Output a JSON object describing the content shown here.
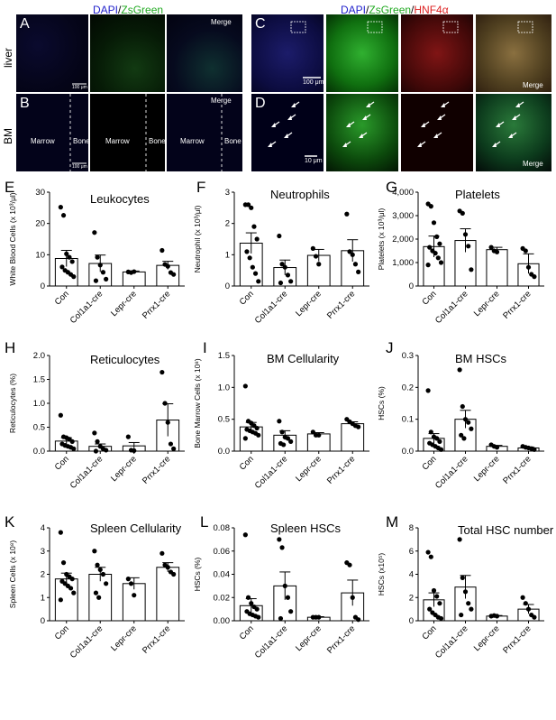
{
  "colors": {
    "dapi": "#2222cc",
    "zsgreen": "#22aa22",
    "hnf4a": "#dd2222",
    "bar_fill": "#ffffff",
    "point": "#000000"
  },
  "micro": {
    "header_left": {
      "dapi": "DAPI",
      "sep": "/",
      "zsgreen": "ZsGreen"
    },
    "header_right": {
      "dapi": "DAPI",
      "sep1": "/",
      "zsgreen": "ZsGreen",
      "sep2": "/",
      "hnf4a": "HNF4α"
    },
    "row_labels": {
      "liver": "liver",
      "bm": "BM"
    },
    "panels": {
      "A": "A",
      "B": "B",
      "C": "C",
      "D": "D"
    },
    "merge": "Merge",
    "scale_100": "100 μm",
    "scale_10": "10 μm",
    "marrow": "Marrow",
    "bone": "Bone"
  },
  "chart_data": [
    {
      "id": "E",
      "type": "bar",
      "title": "Leukocytes",
      "ylabel": "White Blood Cells (x 10³/μl)",
      "ylim": [
        0,
        30
      ],
      "yticks": [
        "0",
        "10",
        "20",
        "30"
      ],
      "yticks_num": [
        0,
        10,
        20,
        30
      ],
      "categories": [
        "Con",
        "Col1a1-cre",
        "Lepr-cre",
        "Prrx1-cre"
      ],
      "means": [
        8.8,
        7.2,
        4.5,
        6.6
      ],
      "sem": [
        2.6,
        2.7,
        0.3,
        1.3
      ],
      "points": [
        [
          25.2,
          22.6,
          10.3,
          9.2,
          7.8,
          6.1,
          5.0,
          4.4,
          3.7,
          3.0
        ],
        [
          17.1,
          9.2,
          6.7,
          4.4,
          2.2,
          1.7
        ],
        [
          4.5,
          4.3,
          4.6
        ],
        [
          11.4,
          6.9,
          6.3,
          4.3,
          3.7
        ]
      ]
    },
    {
      "id": "F",
      "type": "bar",
      "title": "Neutrophils",
      "ylabel": "Neutrophil (x 10³/μl)",
      "ylim": [
        0,
        3
      ],
      "yticks": [
        "0",
        "1",
        "2",
        "3"
      ],
      "yticks_num": [
        0,
        1,
        2,
        3
      ],
      "categories": [
        "Con",
        "Col1a1-cre",
        "Lepr-cre",
        "Prrx1-cre"
      ],
      "means": [
        1.37,
        0.59,
        0.98,
        1.13
      ],
      "sem": [
        0.33,
        0.24,
        0.19,
        0.35
      ],
      "points": [
        [
          2.6,
          2.6,
          2.5,
          1.9,
          1.5,
          1.1,
          0.9,
          0.6,
          0.4,
          0.15
        ],
        [
          1.6,
          0.7,
          0.6,
          0.35,
          0.15,
          0.1
        ],
        [
          1.2,
          0.95,
          0.7
        ],
        [
          2.3,
          1.1,
          1.0,
          0.7,
          0.45
        ]
      ]
    },
    {
      "id": "G",
      "type": "bar",
      "title": "Platelets",
      "ylabel": "Platelets (x 10³/μl)",
      "ylim": [
        0,
        4000
      ],
      "yticks": [
        "0",
        "1,000",
        "2,000",
        "3,000",
        "4,000"
      ],
      "yticks_num": [
        0,
        1000,
        2000,
        3000,
        4000
      ],
      "categories": [
        "Con",
        "Col1a1-cre",
        "Lepr-cre",
        "Prrx1-cre"
      ],
      "means": [
        1680,
        1940,
        1550,
        950
      ],
      "sem": [
        450,
        500,
        100,
        420
      ],
      "points": [
        [
          3500,
          3400,
          2700,
          2100,
          1800,
          1650,
          1500,
          1400,
          1200,
          1000,
          900
        ],
        [
          3200,
          3100,
          2200,
          1700,
          700
        ],
        [
          1650,
          1500,
          1450
        ],
        [
          1600,
          1500,
          800,
          500,
          400
        ]
      ]
    },
    {
      "id": "H",
      "type": "bar",
      "title": "Reticulocytes",
      "ylabel": "Reticulocytes (%)",
      "ylim": [
        0,
        2.0
      ],
      "yticks": [
        "0.0",
        "0.5",
        "1.0",
        "1.5",
        "2.0"
      ],
      "yticks_num": [
        0,
        0.5,
        1.0,
        1.5,
        2.0
      ],
      "categories": [
        "Con",
        "Col1a1-cre",
        "Lepr-cre",
        "Prrx1-cre"
      ],
      "means": [
        0.21,
        0.1,
        0.11,
        0.65
      ],
      "sem": [
        0.07,
        0.05,
        0.07,
        0.34
      ],
      "points": [
        [
          0.75,
          0.3,
          0.28,
          0.25,
          0.2,
          0.15,
          0.12,
          0.1,
          0.08,
          0.05
        ],
        [
          0.38,
          0.2,
          0.1,
          0.05,
          0.02,
          0.0
        ],
        [
          0.3,
          0.02,
          0.01
        ],
        [
          1.65,
          1.0,
          0.6,
          0.15,
          0.05
        ]
      ]
    },
    {
      "id": "I",
      "type": "bar",
      "title": "BM Cellularity",
      "ylabel": "Bone Marrow Cells (x 10⁸)",
      "ylim": [
        0,
        1.5
      ],
      "yticks": [
        "0.0",
        "0.5",
        "1.0",
        "1.5"
      ],
      "yticks_num": [
        0,
        0.5,
        1.0,
        1.5
      ],
      "categories": [
        "Con",
        "Col1a1-cre",
        "Lepr-cre",
        "Prrx1-cre"
      ],
      "means": [
        0.38,
        0.25,
        0.27,
        0.43
      ],
      "sem": [
        0.07,
        0.07,
        0.02,
        0.03
      ],
      "points": [
        [
          1.02,
          0.47,
          0.44,
          0.4,
          0.36,
          0.34,
          0.32,
          0.3,
          0.28,
          0.25,
          0.2
        ],
        [
          0.47,
          0.3,
          0.22,
          0.2,
          0.15,
          0.12,
          0.1
        ],
        [
          0.3,
          0.25,
          0.25
        ],
        [
          0.5,
          0.46,
          0.43,
          0.4,
          0.38
        ]
      ]
    },
    {
      "id": "J",
      "type": "bar",
      "title": "BM HSCs",
      "ylabel": "HSCs (%)",
      "ylim": [
        0,
        0.3
      ],
      "yticks": [
        "0.0",
        "0.1",
        "0.2",
        "0.3"
      ],
      "yticks_num": [
        0,
        0.1,
        0.2,
        0.3
      ],
      "categories": [
        "Con",
        "Col1a1-cre",
        "Lepr-cre",
        "Prrx1-cre"
      ],
      "means": [
        0.04,
        0.1,
        0.015,
        0.01
      ],
      "sem": [
        0.015,
        0.028,
        0.003,
        0.003
      ],
      "points": [
        [
          0.19,
          0.06,
          0.045,
          0.04,
          0.03,
          0.025,
          0.02,
          0.015,
          0.01,
          0.005
        ],
        [
          0.255,
          0.14,
          0.1,
          0.09,
          0.07,
          0.05,
          0.04
        ],
        [
          0.02,
          0.015,
          0.012
        ],
        [
          0.015,
          0.012,
          0.01,
          0.008,
          0.005
        ]
      ]
    },
    {
      "id": "K",
      "type": "bar",
      "title": "Spleen Cellularity",
      "ylabel": "Spleen Cells (x 10⁸)",
      "ylim": [
        0,
        4
      ],
      "yticks": [
        "0",
        "1",
        "2",
        "3",
        "4"
      ],
      "yticks_num": [
        0,
        1,
        2,
        3,
        4
      ],
      "categories": [
        "Con",
        "Col1a1-cre",
        "Lepr-cre",
        "Prrx1-cre"
      ],
      "means": [
        1.8,
        2.0,
        1.6,
        2.3
      ],
      "sem": [
        0.25,
        0.3,
        0.25,
        0.2
      ],
      "points": [
        [
          3.8,
          2.5,
          2.0,
          1.9,
          1.8,
          1.7,
          1.6,
          1.5,
          1.4,
          1.2,
          0.9
        ],
        [
          3.0,
          2.4,
          2.2,
          2.0,
          1.6,
          1.2,
          1.0
        ],
        [
          1.8,
          1.6,
          1.1
        ],
        [
          2.9,
          2.4,
          2.3,
          2.1,
          2.0
        ]
      ]
    },
    {
      "id": "L",
      "type": "bar",
      "title": "Spleen HSCs",
      "ylabel": "HSCs (%)",
      "ylim": [
        0,
        0.08
      ],
      "yticks": [
        "0.00",
        "0.02",
        "0.04",
        "0.06",
        "0.08"
      ],
      "yticks_num": [
        0,
        0.02,
        0.04,
        0.06,
        0.08
      ],
      "categories": [
        "Con",
        "Col1a1-cre",
        "Lepr-cre",
        "Prrx1-cre"
      ],
      "means": [
        0.013,
        0.03,
        0.003,
        0.024
      ],
      "sem": [
        0.006,
        0.012,
        0.0005,
        0.011
      ],
      "points": [
        [
          0.074,
          0.02,
          0.015,
          0.012,
          0.01,
          0.008,
          0.006,
          0.005,
          0.004,
          0.003
        ],
        [
          0.07,
          0.063,
          0.03,
          0.02,
          0.008,
          0.002
        ],
        [
          0.003,
          0.003,
          0.003
        ],
        [
          0.05,
          0.048,
          0.02,
          0.003,
          0.001
        ]
      ]
    },
    {
      "id": "M",
      "type": "bar",
      "title": "Total HSC number",
      "ylabel": "HSCs (x10⁵)",
      "ylim": [
        0,
        8
      ],
      "yticks": [
        "0",
        "2",
        "4",
        "6",
        "8"
      ],
      "yticks_num": [
        0,
        2,
        4,
        6,
        8
      ],
      "categories": [
        "Con",
        "Col1a1-cre",
        "Lepr-cre",
        "Prrx1-cre"
      ],
      "means": [
        1.8,
        2.9,
        0.4,
        1.0
      ],
      "sem": [
        0.6,
        1.0,
        0.05,
        0.4
      ],
      "points": [
        [
          5.9,
          5.5,
          2.6,
          2.1,
          1.5,
          1.0,
          0.7,
          0.5,
          0.3,
          0.2
        ],
        [
          7.0,
          3.7,
          2.5,
          1.5,
          1.0,
          0.5
        ],
        [
          0.4,
          0.45,
          0.4
        ],
        [
          2.0,
          1.5,
          1.0,
          0.5,
          0.3
        ]
      ]
    }
  ]
}
